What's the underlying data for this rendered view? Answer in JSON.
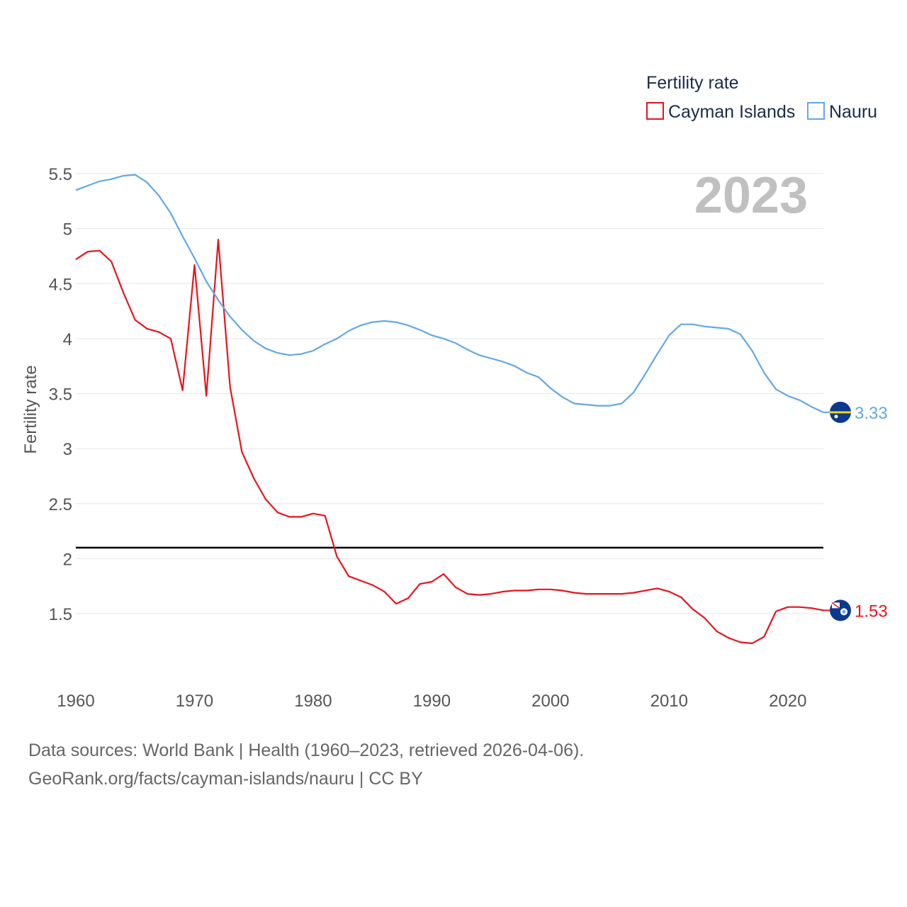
{
  "colors": {
    "cayman": "#e8141c",
    "nauru": "#62a8e8",
    "grid": "#e6e6e6",
    "reference": "#000000",
    "text": "#555555",
    "legend_text": "#1a2b4a"
  },
  "icons": {
    "cayman_flag": "cayman-islands-flag-icon",
    "nauru_flag": "nauru-flag-icon"
  },
  "chart_data": {
    "type": "line",
    "title": "Fertility rate",
    "ylabel": "Fertility rate",
    "xlabel": "",
    "year_display": "2023",
    "xlim": [
      1960,
      2023
    ],
    "ylim": [
      1.0,
      5.65
    ],
    "yticks": [
      1.5,
      2,
      2.5,
      3,
      3.5,
      4,
      4.5,
      5,
      5.5
    ],
    "ytick_labels": [
      "1.5",
      "2",
      "2.5",
      "3",
      "3.5",
      "4",
      "4.5",
      "5",
      "5.5"
    ],
    "xticks": [
      1960,
      1970,
      1980,
      1990,
      2000,
      2010,
      2020
    ],
    "xtick_labels": [
      "1960",
      "1970",
      "1980",
      "1990",
      "2000",
      "2010",
      "2020"
    ],
    "reference_line": {
      "y": 2.1
    },
    "legend": {
      "title": "Fertility rate",
      "position": "top-right"
    },
    "series": [
      {
        "name": "Cayman Islands",
        "color_key": "cayman",
        "end_label": "1.53",
        "x": [
          1960,
          1961,
          1962,
          1963,
          1964,
          1965,
          1966,
          1967,
          1968,
          1969,
          1970,
          1971,
          1972,
          1973,
          1974,
          1975,
          1976,
          1977,
          1978,
          1979,
          1980,
          1981,
          1982,
          1983,
          1984,
          1985,
          1986,
          1987,
          1988,
          1989,
          1990,
          1991,
          1992,
          1993,
          1994,
          1995,
          1996,
          1997,
          1998,
          1999,
          2000,
          2001,
          2002,
          2003,
          2004,
          2005,
          2006,
          2007,
          2008,
          2009,
          2010,
          2011,
          2012,
          2013,
          2014,
          2015,
          2016,
          2017,
          2018,
          2019,
          2020,
          2021,
          2022,
          2023
        ],
        "values": [
          4.72,
          4.79,
          4.8,
          4.7,
          4.42,
          4.17,
          4.09,
          4.06,
          4.0,
          3.53,
          4.67,
          3.48,
          4.9,
          3.56,
          2.97,
          2.73,
          2.54,
          2.42,
          2.38,
          2.38,
          2.41,
          2.39,
          2.02,
          1.84,
          1.8,
          1.76,
          1.7,
          1.59,
          1.64,
          1.77,
          1.79,
          1.86,
          1.74,
          1.68,
          1.67,
          1.68,
          1.7,
          1.71,
          1.71,
          1.72,
          1.72,
          1.71,
          1.69,
          1.68,
          1.68,
          1.68,
          1.68,
          1.69,
          1.71,
          1.73,
          1.7,
          1.65,
          1.54,
          1.46,
          1.34,
          1.28,
          1.24,
          1.23,
          1.29,
          1.52,
          1.56,
          1.56,
          1.55,
          1.53
        ]
      },
      {
        "name": "Nauru",
        "color_key": "nauru",
        "end_label": "3.33",
        "x": [
          1960,
          1961,
          1962,
          1963,
          1964,
          1965,
          1966,
          1967,
          1968,
          1969,
          1970,
          1971,
          1972,
          1973,
          1974,
          1975,
          1976,
          1977,
          1978,
          1979,
          1980,
          1981,
          1982,
          1983,
          1984,
          1985,
          1986,
          1987,
          1988,
          1989,
          1990,
          1991,
          1992,
          1993,
          1994,
          1995,
          1996,
          1997,
          1998,
          1999,
          2000,
          2001,
          2002,
          2003,
          2004,
          2005,
          2006,
          2007,
          2008,
          2009,
          2010,
          2011,
          2012,
          2013,
          2014,
          2015,
          2016,
          2017,
          2018,
          2019,
          2020,
          2021,
          2022,
          2023
        ],
        "values": [
          5.35,
          5.39,
          5.43,
          5.45,
          5.48,
          5.49,
          5.42,
          5.3,
          5.14,
          4.93,
          4.73,
          4.52,
          4.35,
          4.2,
          4.08,
          3.98,
          3.91,
          3.87,
          3.85,
          3.86,
          3.89,
          3.95,
          4.0,
          4.07,
          4.12,
          4.15,
          4.16,
          4.15,
          4.12,
          4.08,
          4.03,
          4.0,
          3.96,
          3.9,
          3.85,
          3.82,
          3.79,
          3.75,
          3.69,
          3.65,
          3.55,
          3.47,
          3.41,
          3.4,
          3.39,
          3.39,
          3.41,
          3.51,
          3.68,
          3.86,
          4.03,
          4.13,
          4.13,
          4.11,
          4.1,
          4.09,
          4.04,
          3.89,
          3.69,
          3.54,
          3.48,
          3.44,
          3.38,
          3.33
        ]
      }
    ]
  },
  "footer": {
    "source_line": "Data sources: World Bank | Health (1960–2023, retrieved 2026-04-06).",
    "credit_line": "GeoRank.org/facts/cayman-islands/nauru | CC BY"
  }
}
